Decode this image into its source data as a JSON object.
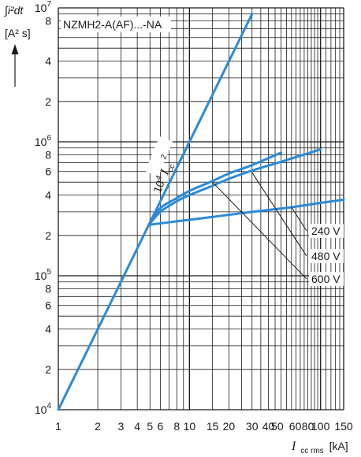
{
  "chart_data": {
    "type": "line",
    "title": "NZMH2-A(AF)...-NA",
    "ylabel": {
      "integral": "∫i²dt",
      "unit": "[A² s]"
    },
    "xlabel": {
      "symbol": "I",
      "subscript": "cc rms",
      "unit": "[kA]"
    },
    "x_scale": "log",
    "y_scale": "log",
    "xlim": [
      1,
      150
    ],
    "ylim": [
      10000,
      10000000
    ],
    "grid": true,
    "x_tick_labels": [
      "1",
      "2",
      "3",
      "4",
      "5",
      "6",
      "8",
      "10",
      "15",
      "20",
      "30",
      "40",
      "50",
      "60",
      "80",
      "100",
      "150"
    ],
    "y_tick_labels": [
      {
        "v": 10000,
        "mant": "10",
        "exp": "4"
      },
      {
        "v": 20000,
        "text": "2"
      },
      {
        "v": 40000,
        "text": "4"
      },
      {
        "v": 60000,
        "text": "6"
      },
      {
        "v": 80000,
        "text": "8"
      },
      {
        "v": 100000,
        "mant": "10",
        "exp": "5"
      },
      {
        "v": 200000,
        "text": "2"
      },
      {
        "v": 400000,
        "text": "4"
      },
      {
        "v": 600000,
        "text": "6"
      },
      {
        "v": 800000,
        "text": "8"
      },
      {
        "v": 1000000,
        "mant": "10",
        "exp": "6"
      },
      {
        "v": 2000000,
        "text": "2"
      },
      {
        "v": 4000000,
        "text": "4"
      },
      {
        "v": 8000000,
        "text": "8"
      },
      {
        "v": 10000000,
        "mant": "10",
        "exp": "7"
      }
    ],
    "reference_line": {
      "label_mant": "10",
      "label_exp": "4",
      "label_sym": "I",
      "label_sub": "cc",
      "label_sq": "2",
      "x": [
        1,
        30
      ],
      "y": [
        10000,
        9000000
      ]
    },
    "series": [
      {
        "name": "240 V",
        "x": [
          4.9,
          8,
          15,
          30,
          60,
          100,
          150
        ],
        "y": [
          240000,
          255000,
          275000,
          300000,
          325000,
          350000,
          370000
        ]
      },
      {
        "name": "480 V",
        "x": [
          4.9,
          6,
          8,
          10,
          15,
          20,
          30,
          50,
          80,
          100
        ],
        "y": [
          240000,
          300000,
          360000,
          400000,
          470000,
          530000,
          610000,
          710000,
          820000,
          880000
        ]
      },
      {
        "name": "600 V",
        "x": [
          4.9,
          6,
          8,
          10,
          15,
          20,
          30,
          50
        ],
        "y": [
          240000,
          320000,
          380000,
          430000,
          510000,
          580000,
          670000,
          830000
        ]
      }
    ],
    "callout_labels": [
      "240 V",
      "480 V",
      "600 V"
    ],
    "colors": {
      "curve": "#2a8ad8",
      "grid": "#1a1a1a"
    }
  }
}
